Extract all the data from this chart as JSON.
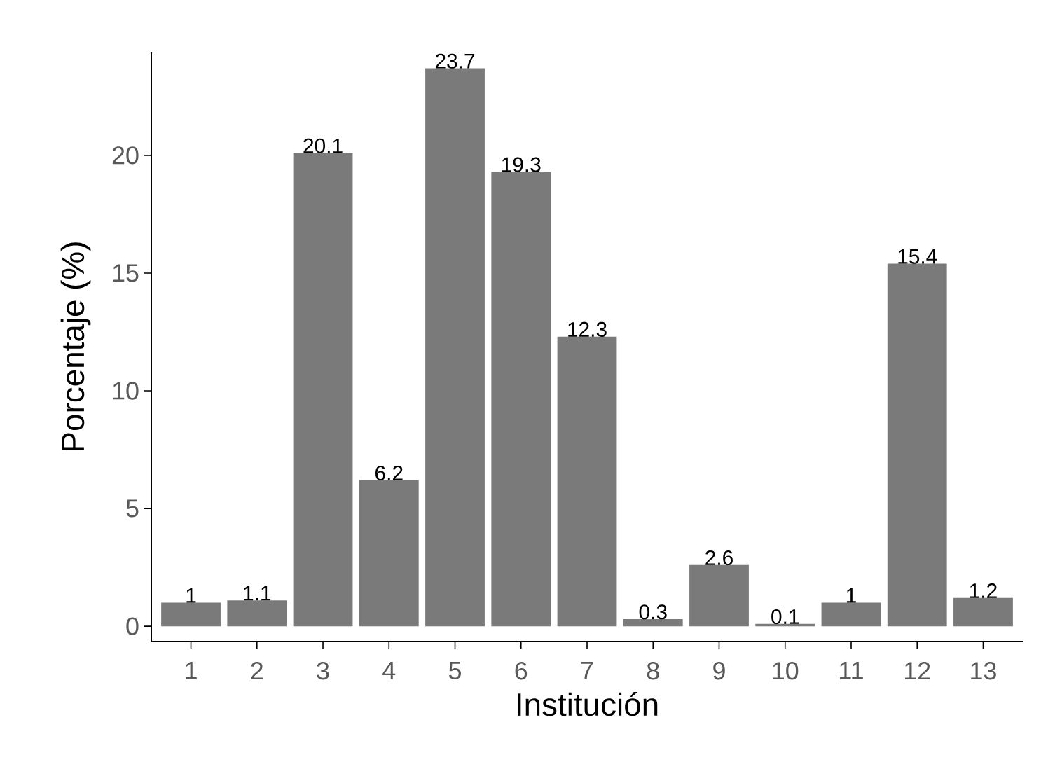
{
  "chart_data": {
    "type": "bar",
    "xlabel": "Institución",
    "ylabel": "Porcentaje (%)",
    "categories": [
      "1",
      "2",
      "3",
      "4",
      "5",
      "6",
      "7",
      "8",
      "9",
      "10",
      "11",
      "12",
      "13"
    ],
    "values": [
      1,
      1.1,
      20.1,
      6.2,
      23.7,
      19.3,
      12.3,
      0.3,
      2.6,
      0.1,
      1,
      15.4,
      1.2
    ],
    "color": "#7a7a7a",
    "ylim": [
      -0.65,
      24.4
    ],
    "yticks": [
      0,
      5,
      10,
      15,
      20
    ],
    "data_labels": true
  }
}
